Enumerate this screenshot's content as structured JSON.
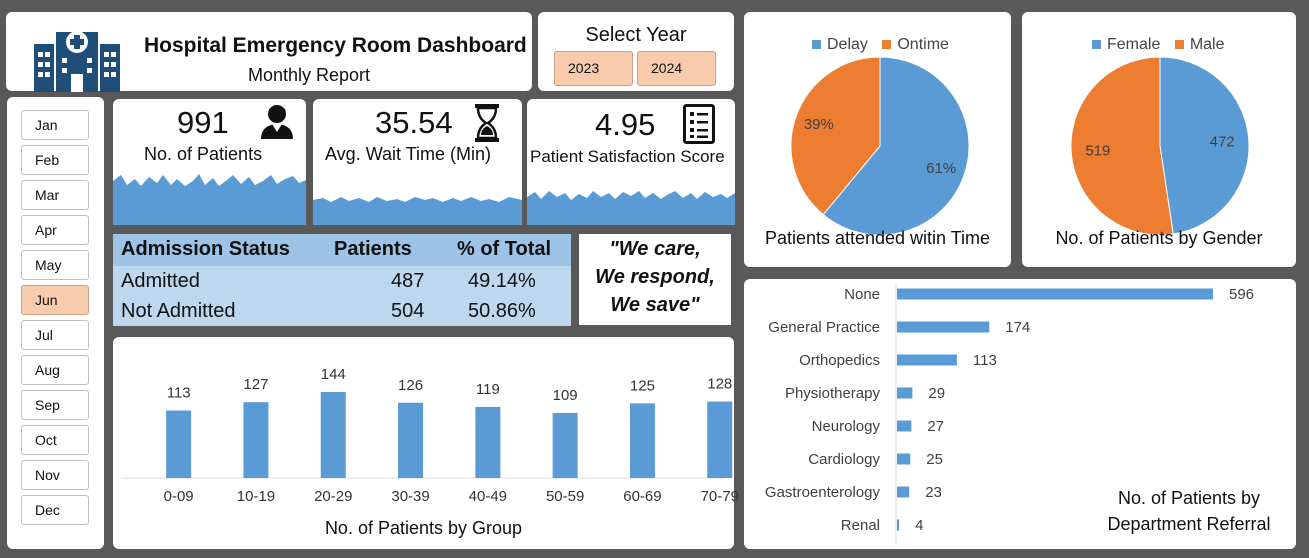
{
  "header": {
    "title": "Hospital Emergency Room Dashboard",
    "subtitle": "Monthly Report"
  },
  "year_selector": {
    "label": "Select Year",
    "years": [
      "2023",
      "2024"
    ]
  },
  "months": [
    "Jan",
    "Feb",
    "Mar",
    "Apr",
    "May",
    "Jun",
    "Jul",
    "Aug",
    "Sep",
    "Oct",
    "Nov",
    "Dec"
  ],
  "selected_month": "Jun",
  "kpis": {
    "patients": {
      "value": "991",
      "label": "No. of Patients"
    },
    "wait": {
      "value": "35.54",
      "label": "Avg. Wait Time (Min)"
    },
    "satisfaction": {
      "value": "4.95",
      "label": "Patient Satisfaction Score"
    }
  },
  "admission": {
    "headers": [
      "Admission Status",
      "Patients",
      "% of Total"
    ],
    "rows": [
      {
        "status": "Admitted",
        "patients": "487",
        "pct": "49.14%"
      },
      {
        "status": "Not Admitted",
        "patients": "504",
        "pct": "50.86%"
      }
    ]
  },
  "quote": {
    "line1": "\"We care,",
    "line2": "We respond,",
    "line3": "We save\""
  },
  "colors": {
    "blue": "#5b9bd5",
    "orange": "#ed7d31",
    "accent_peach": "#f8cbad",
    "table_head": "#9dc3e6",
    "table_body": "#bdd7ee"
  },
  "chart_data": [
    {
      "type": "bar",
      "title": "No. of Patients by Group",
      "categories": [
        "0-09",
        "10-19",
        "20-29",
        "30-39",
        "40-49",
        "50-59",
        "60-69",
        "70-79"
      ],
      "values": [
        113,
        127,
        144,
        126,
        119,
        109,
        125,
        128
      ]
    },
    {
      "type": "pie",
      "title": "Patients attended witin Time",
      "labels": [
        "Delay",
        "Ontime"
      ],
      "values": [
        61,
        39
      ],
      "value_labels": [
        "61%",
        "39%"
      ],
      "colors": [
        "#5b9bd5",
        "#ed7d31"
      ],
      "legend": "top"
    },
    {
      "type": "pie",
      "title": "No. of Patients by Gender",
      "labels": [
        "Female",
        "Male"
      ],
      "values": [
        472,
        519
      ],
      "value_labels": [
        "472",
        "519"
      ],
      "colors": [
        "#5b9bd5",
        "#ed7d31"
      ],
      "legend": "top"
    },
    {
      "type": "bar",
      "orientation": "horizontal",
      "title": "No. of Patients by Department Referral",
      "title_lines": [
        "No. of Patients by",
        "Department Referral"
      ],
      "categories": [
        "None",
        "General Practice",
        "Orthopedics",
        "Physiotherapy",
        "Neurology",
        "Cardiology",
        "Gastroenterology",
        "Renal"
      ],
      "values": [
        596,
        174,
        113,
        29,
        27,
        25,
        23,
        4
      ]
    }
  ]
}
